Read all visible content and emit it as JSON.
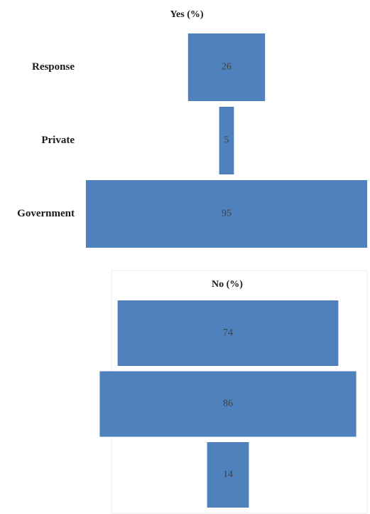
{
  "chart_data": [
    {
      "type": "funnel",
      "title": "Yes (%)",
      "categories": [
        "Response",
        "Private",
        "Government"
      ],
      "values": [
        26,
        5,
        95
      ],
      "color": "#4f81bd"
    },
    {
      "type": "funnel",
      "title": "No (%)",
      "values": [
        74,
        86,
        14
      ],
      "color": "#4f81bd"
    }
  ]
}
